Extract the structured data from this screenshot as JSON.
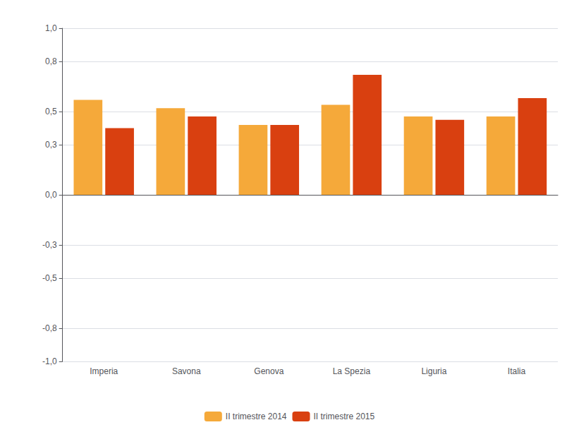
{
  "chart_data": {
    "type": "bar",
    "categories": [
      "Imperia",
      "Savona",
      "Genova",
      "La Spezia",
      "Liguria",
      "Italia"
    ],
    "series": [
      {
        "name": "II trimestre 2014",
        "color": "#F5A93A",
        "values": [
          0.57,
          0.52,
          0.42,
          0.54,
          0.47,
          0.47
        ]
      },
      {
        "name": "II trimestre 2015",
        "color": "#D94010",
        "values": [
          0.4,
          0.47,
          0.42,
          0.72,
          0.45,
          0.58
        ]
      }
    ],
    "ylim": [
      -1.0,
      1.0
    ],
    "yticks": [
      {
        "value": -1.0,
        "label": "-1,0"
      },
      {
        "value": -0.8,
        "label": "-0,8"
      },
      {
        "value": -0.5,
        "label": "-0,5"
      },
      {
        "value": -0.3,
        "label": "-0,3"
      },
      {
        "value": 0.0,
        "label": "0,0"
      },
      {
        "value": 0.3,
        "label": "0,3"
      },
      {
        "value": 0.5,
        "label": "0,5"
      },
      {
        "value": 0.8,
        "label": "0,8"
      },
      {
        "value": 1.0,
        "label": "1,0"
      }
    ],
    "grid": true,
    "legend": "bottom"
  }
}
